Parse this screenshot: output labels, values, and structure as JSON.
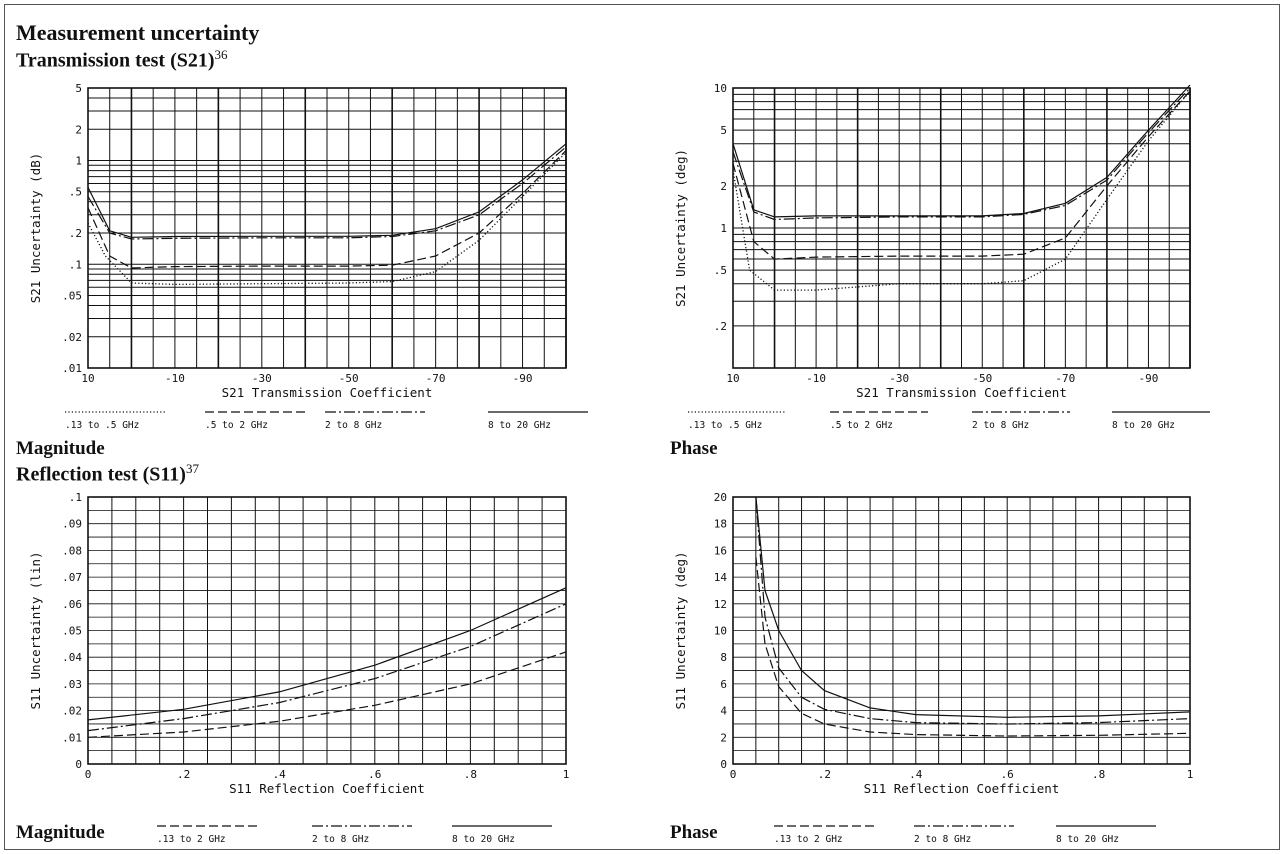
{
  "page": {
    "title": "Measurement uncertainty",
    "transmission_heading": "Transmission test (S21)",
    "transmission_footnote": "36",
    "reflection_heading": "Reflection test (S11)",
    "reflection_footnote": "37",
    "caption_tl": "Magnitude",
    "caption_tr": "Phase",
    "caption_bl": "Magnitude",
    "caption_br": "Phase"
  },
  "chart_data": [
    {
      "type": "line",
      "ylabel": "S21 Uncertainty (dB)",
      "xlabel": "S21 Transmission Coefficient",
      "y_scale": "log",
      "xlim": [
        10,
        -100
      ],
      "ylim": [
        0.01,
        5
      ],
      "x_ticks": [
        "10",
        "-10",
        "-30",
        "-50",
        "-70",
        "-90"
      ],
      "y_ticks": [
        {
          "v": 5,
          "t": "5"
        },
        {
          "v": 2,
          "t": "2"
        },
        {
          "v": 1,
          "t": "1"
        },
        {
          "v": 0.5,
          "t": ".5"
        },
        {
          "v": 0.2,
          "t": ".2"
        },
        {
          "v": 0.1,
          "t": ".1"
        },
        {
          "v": 0.05,
          "t": ".05"
        },
        {
          "v": 0.02,
          "t": ".02"
        },
        {
          "v": 0.01,
          "t": ".01"
        }
      ],
      "legend": [
        ".13  to .5 GHz",
        ".5 to 2 GHz",
        "2 to 8 GHz",
        "8 to 20 GHz"
      ],
      "series": [
        {
          "name": ".13  to .5 GHz",
          "style": "dotted",
          "x": [
            10,
            6,
            0,
            -10,
            -30,
            -50,
            -60,
            -70,
            -80,
            -90,
            -100
          ],
          "y": [
            0.25,
            0.12,
            0.066,
            0.064,
            0.065,
            0.066,
            0.068,
            0.085,
            0.17,
            0.45,
            1.2
          ]
        },
        {
          "name": ".5 to 2 GHz",
          "style": "dashed",
          "x": [
            10,
            5,
            0,
            -10,
            -30,
            -50,
            -60,
            -70,
            -80,
            -90,
            -100
          ],
          "y": [
            0.35,
            0.12,
            0.092,
            0.095,
            0.096,
            0.096,
            0.098,
            0.12,
            0.2,
            0.48,
            1.25
          ]
        },
        {
          "name": "2 to 8 GHz",
          "style": "dashdot",
          "x": [
            10,
            5,
            0,
            -10,
            -30,
            -50,
            -60,
            -70,
            -80,
            -90,
            -100
          ],
          "y": [
            0.45,
            0.2,
            0.175,
            0.178,
            0.18,
            0.18,
            0.185,
            0.21,
            0.3,
            0.6,
            1.35
          ]
        },
        {
          "name": "8 to 20 GHz",
          "style": "solid",
          "x": [
            10,
            5,
            0,
            -10,
            -30,
            -50,
            -60,
            -70,
            -80,
            -90,
            -100
          ],
          "y": [
            0.55,
            0.21,
            0.182,
            0.185,
            0.186,
            0.186,
            0.19,
            0.22,
            0.32,
            0.65,
            1.45
          ]
        }
      ]
    },
    {
      "type": "line",
      "ylabel": "S21 Uncertainty (deg)",
      "xlabel": "S21 Transmission Coefficient",
      "y_scale": "log",
      "xlim": [
        10,
        -100
      ],
      "ylim": [
        0.1,
        10
      ],
      "x_ticks": [
        "10",
        "-10",
        "-30",
        "-50",
        "-70",
        "-90"
      ],
      "y_ticks": [
        {
          "v": 10,
          "t": "10"
        },
        {
          "v": 5,
          "t": "5"
        },
        {
          "v": 2,
          "t": "2"
        },
        {
          "v": 1,
          "t": "1"
        },
        {
          "v": 0.5,
          "t": ".5"
        },
        {
          "v": 0.2,
          "t": ".2"
        }
      ],
      "legend": [
        ".13  to .5 GHz",
        ".5 to 2 GHz",
        "2 to 8 GHz",
        "8 to 20 GHz"
      ],
      "series": [
        {
          "name": ".13  to .5 GHz",
          "style": "dotted",
          "x": [
            10,
            6,
            0,
            -10,
            -30,
            -50,
            -60,
            -70,
            -80,
            -90,
            -100
          ],
          "y": [
            2.6,
            0.5,
            0.36,
            0.36,
            0.4,
            0.4,
            0.42,
            0.6,
            1.6,
            4.2,
            9.5
          ]
        },
        {
          "name": ".5 to 2 GHz",
          "style": "dashed",
          "x": [
            10,
            5,
            0,
            -10,
            -30,
            -50,
            -60,
            -70,
            -80,
            -90,
            -100
          ],
          "y": [
            2.9,
            0.8,
            0.6,
            0.62,
            0.63,
            0.63,
            0.65,
            0.85,
            2.0,
            4.5,
            9.5
          ]
        },
        {
          "name": "2 to 8 GHz",
          "style": "dashdot",
          "x": [
            10,
            5,
            0,
            -10,
            -30,
            -50,
            -60,
            -70,
            -80,
            -90,
            -100
          ],
          "y": [
            3.5,
            1.3,
            1.15,
            1.18,
            1.2,
            1.2,
            1.25,
            1.45,
            2.2,
            4.8,
            10
          ]
        },
        {
          "name": "8 to 20 GHz",
          "style": "solid",
          "x": [
            10,
            5,
            0,
            -10,
            -30,
            -50,
            -60,
            -70,
            -80,
            -90,
            -100
          ],
          "y": [
            4.0,
            1.35,
            1.2,
            1.22,
            1.22,
            1.22,
            1.27,
            1.5,
            2.3,
            5.0,
            10.5
          ]
        }
      ]
    },
    {
      "type": "line",
      "ylabel": "S11 Uncertainty (lin)",
      "xlabel": "S11 Reflection Coefficient",
      "xlim": [
        0,
        1
      ],
      "ylim": [
        0,
        0.1
      ],
      "x_ticks": [
        {
          "v": 0,
          "t": "0"
        },
        {
          "v": 0.2,
          "t": ".2"
        },
        {
          "v": 0.4,
          "t": ".4"
        },
        {
          "v": 0.6,
          "t": ".6"
        },
        {
          "v": 0.8,
          "t": ".8"
        },
        {
          "v": 1,
          "t": "1"
        }
      ],
      "y_ticks": [
        {
          "v": 0.1,
          "t": ".1"
        },
        {
          "v": 0.09,
          "t": ".09"
        },
        {
          "v": 0.08,
          "t": ".08"
        },
        {
          "v": 0.07,
          "t": ".07"
        },
        {
          "v": 0.06,
          "t": ".06"
        },
        {
          "v": 0.05,
          "t": ".05"
        },
        {
          "v": 0.04,
          "t": ".04"
        },
        {
          "v": 0.03,
          "t": ".03"
        },
        {
          "v": 0.02,
          "t": ".02"
        },
        {
          "v": 0.01,
          "t": ".01"
        },
        {
          "v": 0,
          "t": "0"
        }
      ],
      "legend": [
        ".13  to 2 GHz",
        "2 to 8 GHz",
        "8 to 20 GHz"
      ],
      "series": [
        {
          "name": ".13  to 2 GHz",
          "style": "dashed",
          "x": [
            0,
            0.2,
            0.4,
            0.6,
            0.8,
            1.0
          ],
          "y": [
            0.01,
            0.012,
            0.016,
            0.022,
            0.03,
            0.042
          ]
        },
        {
          "name": "2 to 8 GHz",
          "style": "dashdot",
          "x": [
            0,
            0.2,
            0.4,
            0.6,
            0.8,
            1.0
          ],
          "y": [
            0.0125,
            0.017,
            0.023,
            0.032,
            0.044,
            0.06
          ]
        },
        {
          "name": "8 to 20 GHz",
          "style": "solid",
          "x": [
            0,
            0.2,
            0.4,
            0.6,
            0.8,
            1.0
          ],
          "y": [
            0.0165,
            0.0205,
            0.027,
            0.037,
            0.05,
            0.066
          ]
        }
      ]
    },
    {
      "type": "line",
      "ylabel": "S11 Uncertainty (deg)",
      "xlabel": "S11 Reflection Coefficient",
      "xlim": [
        0,
        1
      ],
      "ylim": [
        0,
        20
      ],
      "x_ticks": [
        {
          "v": 0,
          "t": "0"
        },
        {
          "v": 0.2,
          "t": ".2"
        },
        {
          "v": 0.4,
          "t": ".4"
        },
        {
          "v": 0.6,
          "t": ".6"
        },
        {
          "v": 0.8,
          "t": ".8"
        },
        {
          "v": 1,
          "t": "1"
        }
      ],
      "y_ticks": [
        {
          "v": 20,
          "t": "20"
        },
        {
          "v": 18,
          "t": "18"
        },
        {
          "v": 16,
          "t": "16"
        },
        {
          "v": 14,
          "t": "14"
        },
        {
          "v": 12,
          "t": "12"
        },
        {
          "v": 10,
          "t": "10"
        },
        {
          "v": 8,
          "t": "8"
        },
        {
          "v": 6,
          "t": "6"
        },
        {
          "v": 4,
          "t": "4"
        },
        {
          "v": 2,
          "t": "2"
        },
        {
          "v": 0,
          "t": "0"
        }
      ],
      "legend": [
        ".13  to 2 GHz",
        "2 to 8 GHz",
        "8 to 20 GHz"
      ],
      "series": [
        {
          "name": ".13  to 2 GHz",
          "style": "dashed",
          "x": [
            0.05,
            0.07,
            0.1,
            0.15,
            0.2,
            0.3,
            0.4,
            0.6,
            0.8,
            1.0
          ],
          "y": [
            15.5,
            9,
            5.8,
            3.8,
            3.0,
            2.4,
            2.2,
            2.1,
            2.15,
            2.3
          ]
        },
        {
          "name": "2 to 8 GHz",
          "style": "dashdot",
          "x": [
            0.05,
            0.07,
            0.1,
            0.15,
            0.2,
            0.3,
            0.4,
            0.6,
            0.8,
            1.0
          ],
          "y": [
            20,
            11,
            7.2,
            5.0,
            4.1,
            3.4,
            3.1,
            3.0,
            3.1,
            3.4
          ]
        },
        {
          "name": "8 to 20 GHz",
          "style": "solid",
          "x": [
            0.05,
            0.07,
            0.1,
            0.15,
            0.2,
            0.3,
            0.4,
            0.6,
            0.8,
            1.0
          ],
          "y": [
            20,
            13,
            10,
            7,
            5.5,
            4.2,
            3.7,
            3.5,
            3.6,
            3.9
          ]
        }
      ]
    }
  ]
}
